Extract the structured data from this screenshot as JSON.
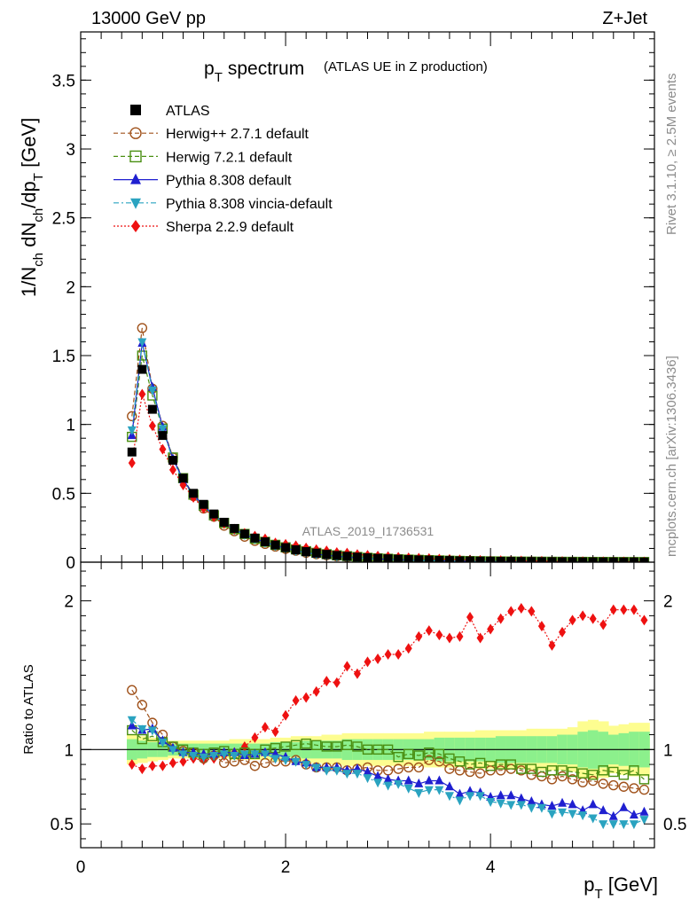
{
  "header": {
    "left": "13000 GeV pp",
    "right": "Z+Jet"
  },
  "side_text": {
    "top": "Rivet 3.1.10, ≥ 2.5M events",
    "bottom": "mcplots.cern.ch [arXiv:1306.3436]"
  },
  "watermark": "ATLAS_2019_I1736531",
  "colors": {
    "ATLAS": "#000000",
    "herwigpp": "#a0521b",
    "herwig7": "#4a8f12",
    "py8": "#1f1fd0",
    "vincia": "#2aa3c0",
    "sherpa": "#ee1111",
    "band_inner": "#8cf08c",
    "band_outer": "#fdfd90"
  },
  "chart_data": [
    {
      "panel": "main",
      "type": "scatter",
      "title": "p_T spectrum",
      "title_main": "p",
      "title_sub": "T",
      "title_rest": "spectrum",
      "subtitle": "(ATLAS UE in Z production)",
      "ylabel": "1/N_ch dN_ch/dp_T [GeV]",
      "ylabel_parts": {
        "a": "1/N",
        "a_sub": "ch",
        "b": " dN",
        "b_sub": "ch",
        "c": "/dp",
        "c_sub": "T",
        "d": " [GeV]"
      },
      "xlim": [
        0,
        5.6
      ],
      "ylim": [
        0,
        3.85
      ],
      "y_ticks": [
        0,
        0.5,
        1,
        1.5,
        2,
        2.5,
        3,
        3.5
      ],
      "y_tick_labels": [
        "0",
        "0.5",
        "1",
        "1.5",
        "2",
        "2.5",
        "3",
        "3.5"
      ],
      "legend_position": "top-left",
      "legend": [
        {
          "key": "ATLAS",
          "label": "ATLAS"
        },
        {
          "key": "herwigpp",
          "label": "Herwig++ 2.7.1 default"
        },
        {
          "key": "herwig7",
          "label": "Herwig 7.2.1 default"
        },
        {
          "key": "py8",
          "label": "Pythia 8.308 default"
        },
        {
          "key": "vincia",
          "label": "Pythia 8.308 vincia-default"
        },
        {
          "key": "sherpa",
          "label": "Sherpa 2.2.9 default"
        }
      ],
      "x": [
        0.5,
        0.6,
        0.7,
        0.8,
        0.9,
        1.0,
        1.1,
        1.2,
        1.3,
        1.4,
        1.5,
        1.6,
        1.7,
        1.8,
        1.9,
        2.0,
        2.1,
        2.2,
        2.3,
        2.4,
        2.5,
        2.6,
        2.7,
        2.8,
        2.9,
        3.0,
        3.1,
        3.2,
        3.3,
        3.4,
        3.5,
        3.6,
        3.7,
        3.8,
        3.9,
        4.0,
        4.1,
        4.2,
        4.3,
        4.4,
        4.5,
        4.6,
        4.7,
        4.8,
        4.9,
        5.0,
        5.1,
        5.2,
        5.3,
        5.4,
        5.5
      ],
      "series": [
        {
          "key": "ATLAS",
          "values": [
            0.8,
            1.4,
            1.11,
            0.92,
            0.74,
            0.61,
            0.5,
            0.42,
            0.35,
            0.29,
            0.245,
            0.205,
            0.175,
            0.148,
            0.125,
            0.106,
            0.09,
            0.077,
            0.066,
            0.057,
            0.049,
            0.043,
            0.037,
            0.032,
            0.028,
            0.025,
            0.022,
            0.019,
            0.017,
            0.015,
            0.013,
            0.012,
            0.01,
            0.009,
            0.008,
            0.0072,
            0.0064,
            0.0057,
            0.0051,
            0.0046,
            0.0041,
            0.0037,
            0.0033,
            0.003,
            0.0027,
            0.0024,
            0.0022,
            0.002,
            0.0018,
            0.0016,
            0.0015
          ]
        },
        {
          "key": "herwigpp",
          "values": [
            1.06,
            1.7,
            1.26,
            0.99,
            0.76,
            0.6,
            0.48,
            0.39,
            0.33,
            0.265,
            0.225,
            0.185,
            0.155,
            0.133,
            0.113,
            0.097,
            0.083,
            0.069,
            0.058,
            0.05,
            0.043,
            0.037,
            0.032,
            0.028,
            0.024,
            0.022,
            0.019,
            0.017,
            0.015,
            0.013,
            0.011,
            0.01,
            0.009,
            0.008,
            0.007,
            0.0062,
            0.0055,
            0.0049,
            0.0043,
            0.0038,
            0.0034,
            0.003,
            0.0027,
            0.0024,
            0.0021,
            0.0019,
            0.0017,
            0.0015,
            0.0014,
            0.0012,
            0.0011
          ]
        },
        {
          "key": "herwig7",
          "values": [
            0.91,
            1.5,
            1.21,
            0.97,
            0.76,
            0.61,
            0.49,
            0.41,
            0.34,
            0.285,
            0.24,
            0.205,
            0.17,
            0.148,
            0.126,
            0.108,
            0.093,
            0.08,
            0.068,
            0.058,
            0.05,
            0.044,
            0.038,
            0.032,
            0.028,
            0.025,
            0.021,
            0.019,
            0.017,
            0.015,
            0.013,
            0.011,
            0.0094,
            0.0083,
            0.0073,
            0.0064,
            0.0058,
            0.0051,
            0.0044,
            0.004,
            0.0035,
            0.0032,
            0.0029,
            0.0026,
            0.0023,
            0.002,
            0.0019,
            0.0017,
            0.0015,
            0.0014,
            0.0012
          ]
        },
        {
          "key": "py8",
          "values": [
            0.92,
            1.59,
            1.27,
            0.98,
            0.75,
            0.6,
            0.49,
            0.41,
            0.34,
            0.285,
            0.24,
            0.2,
            0.17,
            0.145,
            0.121,
            0.101,
            0.083,
            0.07,
            0.058,
            0.05,
            0.043,
            0.037,
            0.032,
            0.027,
            0.023,
            0.02,
            0.017,
            0.015,
            0.013,
            0.012,
            0.01,
            0.0085,
            0.007,
            0.0065,
            0.0057,
            0.0049,
            0.0044,
            0.0039,
            0.0034,
            0.003,
            0.0026,
            0.0023,
            0.0021,
            0.0019,
            0.0016,
            0.0015,
            0.0013,
            0.0011,
            0.0011,
            0.0009,
            0.0008
          ]
        },
        {
          "key": "vincia",
          "values": [
            0.96,
            1.6,
            1.25,
            0.97,
            0.74,
            0.59,
            0.48,
            0.4,
            0.34,
            0.28,
            0.235,
            0.2,
            0.17,
            0.143,
            0.118,
            0.099,
            0.083,
            0.069,
            0.058,
            0.049,
            0.042,
            0.036,
            0.031,
            0.026,
            0.022,
            0.019,
            0.017,
            0.014,
            0.012,
            0.011,
            0.0095,
            0.0083,
            0.0066,
            0.0062,
            0.0055,
            0.0047,
            0.0041,
            0.0036,
            0.0032,
            0.0028,
            0.0025,
            0.0021,
            0.0019,
            0.0017,
            0.0015,
            0.0013,
            0.0011,
            0.001,
            0.0009,
            0.0008,
            0.0008
          ]
        },
        {
          "key": "sherpa",
          "values": [
            0.72,
            1.22,
            0.99,
            0.82,
            0.67,
            0.56,
            0.47,
            0.39,
            0.33,
            0.28,
            0.24,
            0.21,
            0.19,
            0.17,
            0.14,
            0.13,
            0.12,
            0.104,
            0.092,
            0.083,
            0.071,
            0.067,
            0.056,
            0.051,
            0.045,
            0.041,
            0.036,
            0.032,
            0.03,
            0.027,
            0.023,
            0.021,
            0.018,
            0.017,
            0.014,
            0.013,
            0.012,
            0.011,
            0.0094,
            0.0085,
            0.0075,
            0.0063,
            0.0057,
            0.0054,
            0.0051,
            0.0045,
            0.0041,
            0.0038,
            0.0035,
            0.0031,
            0.0028
          ]
        }
      ]
    },
    {
      "panel": "ratio",
      "type": "scatter",
      "ylabel": "Ratio to ATLAS",
      "xlabel": "p_T [GeV]",
      "xlabel_parts": {
        "a": "p",
        "a_sub": "T",
        "b": " [GeV]"
      },
      "xlim": [
        0,
        5.6
      ],
      "ylim": [
        0.34,
        2.26
      ],
      "x_ticks": [
        0,
        2,
        4
      ],
      "x_tick_labels": [
        "0",
        "2",
        "4"
      ],
      "y_ticks": [
        0.5,
        1,
        2
      ],
      "y_tick_labels": [
        "0.5",
        "1",
        "2"
      ],
      "reference_line": 1,
      "x": [
        0.5,
        0.6,
        0.7,
        0.8,
        0.9,
        1.0,
        1.1,
        1.2,
        1.3,
        1.4,
        1.5,
        1.6,
        1.7,
        1.8,
        1.9,
        2.0,
        2.1,
        2.2,
        2.3,
        2.4,
        2.5,
        2.6,
        2.7,
        2.8,
        2.9,
        3.0,
        3.1,
        3.2,
        3.3,
        3.4,
        3.5,
        3.6,
        3.7,
        3.8,
        3.9,
        4.0,
        4.1,
        4.2,
        4.3,
        4.4,
        4.5,
        4.6,
        4.7,
        4.8,
        4.9,
        5.0,
        5.1,
        5.2,
        5.3,
        5.4,
        5.5
      ],
      "band_inner": [
        0.07,
        0.06,
        0.05,
        0.05,
        0.04,
        0.04,
        0.04,
        0.04,
        0.04,
        0.04,
        0.04,
        0.04,
        0.04,
        0.04,
        0.05,
        0.05,
        0.05,
        0.06,
        0.06,
        0.06,
        0.06,
        0.07,
        0.07,
        0.07,
        0.07,
        0.07,
        0.07,
        0.07,
        0.07,
        0.07,
        0.08,
        0.08,
        0.08,
        0.08,
        0.08,
        0.08,
        0.09,
        0.09,
        0.09,
        0.09,
        0.09,
        0.09,
        0.1,
        0.1,
        0.12,
        0.13,
        0.12,
        0.1,
        0.11,
        0.12,
        0.12
      ],
      "band_outer": [
        0.1,
        0.09,
        0.08,
        0.07,
        0.06,
        0.06,
        0.06,
        0.06,
        0.06,
        0.06,
        0.07,
        0.07,
        0.07,
        0.07,
        0.08,
        0.08,
        0.09,
        0.09,
        0.09,
        0.1,
        0.1,
        0.11,
        0.11,
        0.11,
        0.11,
        0.11,
        0.11,
        0.11,
        0.11,
        0.12,
        0.12,
        0.12,
        0.12,
        0.12,
        0.13,
        0.13,
        0.13,
        0.13,
        0.13,
        0.14,
        0.14,
        0.14,
        0.14,
        0.15,
        0.19,
        0.2,
        0.19,
        0.16,
        0.17,
        0.18,
        0.18
      ],
      "series": [
        {
          "key": "herwigpp",
          "values": [
            1.4,
            1.3,
            1.18,
            1.1,
            1.02,
            0.99,
            0.98,
            0.94,
            0.96,
            0.91,
            0.92,
            0.93,
            0.89,
            0.91,
            0.92,
            0.92,
            0.93,
            0.9,
            0.88,
            0.88,
            0.88,
            0.86,
            0.87,
            0.88,
            0.86,
            0.86,
            0.87,
            0.88,
            0.88,
            0.93,
            0.92,
            0.87,
            0.86,
            0.85,
            0.84,
            0.86,
            0.86,
            0.87,
            0.86,
            0.83,
            0.82,
            0.8,
            0.82,
            0.8,
            0.78,
            0.79,
            0.77,
            0.76,
            0.75,
            0.74,
            0.73
          ]
        },
        {
          "key": "herwig7",
          "values": [
            1.13,
            1.07,
            1.09,
            1.05,
            1.02,
            1.0,
            0.98,
            0.97,
            0.98,
            0.99,
            0.97,
            0.98,
            0.97,
            1.0,
            1.01,
            1.02,
            1.03,
            1.04,
            1.03,
            1.02,
            1.02,
            1.03,
            1.02,
            1.0,
            1.0,
            1.0,
            0.95,
            0.97,
            0.96,
            0.98,
            0.97,
            0.94,
            0.92,
            0.9,
            0.91,
            0.89,
            0.9,
            0.9,
            0.87,
            0.87,
            0.85,
            0.86,
            0.86,
            0.85,
            0.84,
            0.83,
            0.86,
            0.85,
            0.83,
            0.86,
            0.8
          ]
        },
        {
          "key": "py8",
          "values": [
            1.16,
            1.13,
            1.14,
            1.06,
            1.01,
            0.98,
            0.98,
            0.97,
            0.97,
            0.98,
            0.98,
            0.96,
            0.97,
            0.98,
            0.97,
            0.95,
            0.92,
            0.91,
            0.88,
            0.88,
            0.88,
            0.86,
            0.87,
            0.85,
            0.82,
            0.8,
            0.79,
            0.79,
            0.77,
            0.79,
            0.79,
            0.75,
            0.7,
            0.72,
            0.71,
            0.68,
            0.69,
            0.69,
            0.67,
            0.65,
            0.63,
            0.62,
            0.64,
            0.63,
            0.59,
            0.63,
            0.59,
            0.55,
            0.61,
            0.56,
            0.58
          ]
        },
        {
          "key": "vincia",
          "values": [
            1.2,
            1.14,
            1.13,
            1.05,
            1.0,
            0.97,
            0.96,
            0.95,
            0.96,
            0.97,
            0.96,
            0.97,
            0.97,
            0.97,
            0.94,
            0.93,
            0.92,
            0.9,
            0.88,
            0.86,
            0.86,
            0.84,
            0.84,
            0.81,
            0.78,
            0.76,
            0.77,
            0.74,
            0.71,
            0.73,
            0.73,
            0.69,
            0.66,
            0.69,
            0.69,
            0.65,
            0.64,
            0.63,
            0.63,
            0.61,
            0.61,
            0.57,
            0.58,
            0.57,
            0.56,
            0.54,
            0.5,
            0.5,
            0.5,
            0.5,
            0.53
          ]
        },
        {
          "key": "sherpa",
          "values": [
            0.9,
            0.87,
            0.89,
            0.89,
            0.91,
            0.92,
            0.94,
            0.93,
            0.94,
            0.96,
            0.98,
            1.02,
            1.08,
            1.15,
            1.12,
            1.23,
            1.33,
            1.35,
            1.39,
            1.46,
            1.45,
            1.56,
            1.51,
            1.59,
            1.61,
            1.64,
            1.64,
            1.68,
            1.76,
            1.8,
            1.77,
            1.75,
            1.76,
            1.89,
            1.75,
            1.81,
            1.88,
            1.93,
            1.95,
            1.93,
            1.83,
            1.7,
            1.79,
            1.87,
            1.9,
            1.88,
            1.84,
            1.94,
            1.94,
            1.94,
            1.87
          ]
        }
      ]
    }
  ]
}
